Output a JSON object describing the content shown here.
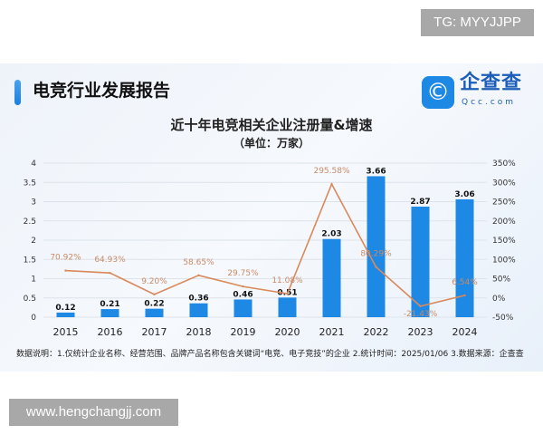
{
  "watermark_top": "TG: MYYJJPP",
  "watermark_bottom": "www.hengchangjj.com",
  "report_title": "电竞行业发展报告",
  "logo": {
    "name": "企查查",
    "sub": "Qcc.com",
    "icon": "qcc-logo-icon",
    "color": "#1e88e5"
  },
  "footnote": "数据说明：1.仅统计企业名称、经营范围、品牌产品名称包含关键词“电竞、电子竞技”的企业  2.统计时间：2025/01/06   3.数据来源：企查查",
  "chart_data": {
    "type": "bar+line",
    "title": "近十年电竞相关企业注册量&增速",
    "subtitle": "（单位：万家）",
    "categories": [
      "2015",
      "2016",
      "2017",
      "2018",
      "2019",
      "2020",
      "2021",
      "2022",
      "2023",
      "2024"
    ],
    "series": [
      {
        "type": "bar",
        "axis": "left",
        "color": "#1e88e5",
        "values": [
          0.12,
          0.21,
          0.22,
          0.36,
          0.46,
          0.51,
          2.03,
          3.66,
          2.87,
          3.06
        ],
        "labels": [
          "0.12",
          "0.21",
          "0.22",
          "0.36",
          "0.46",
          "0.51",
          "2.03",
          "3.66",
          "2.87",
          "3.06"
        ]
      },
      {
        "type": "line",
        "axis": "right",
        "color": "#d9895a",
        "values": [
          70.92,
          64.93,
          9.2,
          58.65,
          29.75,
          11.08,
          295.58,
          80.29,
          -21.43,
          6.54
        ],
        "labels": [
          "70.92%",
          "64.93%",
          "9.20%",
          "58.65%",
          "29.75%",
          "11.08%",
          "295.58%",
          "80.29%",
          "-21.43%",
          "6.54%"
        ]
      }
    ],
    "y_left": {
      "range": [
        0,
        4
      ],
      "ticks": [
        "0",
        "0.5",
        "1",
        "1.5",
        "2",
        "2.5",
        "3",
        "3.5",
        "4"
      ]
    },
    "y_right": {
      "range": [
        -50,
        350
      ],
      "ticks": [
        "-50%",
        "0%",
        "50%",
        "100%",
        "150%",
        "200%",
        "250%",
        "300%",
        "350%"
      ]
    },
    "grid": true
  }
}
